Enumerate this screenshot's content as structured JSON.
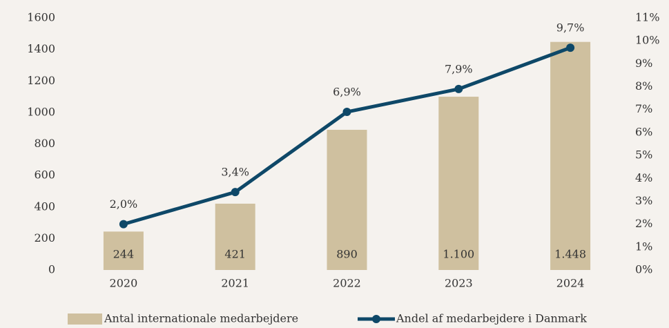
{
  "chart_data": {
    "type": "bar",
    "categories": [
      "2020",
      "2021",
      "2022",
      "2023",
      "2024"
    ],
    "series": [
      {
        "name": "Antal internationale medarbejdere",
        "type": "bar",
        "color": "#cfc09f",
        "values": [
          244,
          421,
          890,
          1100,
          1448
        ],
        "value_labels": [
          "244",
          "421",
          "890",
          "1.100",
          "1.448"
        ]
      },
      {
        "name": "Andel af medarbejdere i Danmark",
        "type": "line",
        "axis": "y2",
        "color": "#0e4868",
        "values": [
          2.0,
          3.4,
          6.9,
          7.9,
          9.7
        ],
        "value_labels": [
          "2,0%",
          "3,4%",
          "6,9%",
          "7,9%",
          "9,7%"
        ]
      }
    ],
    "ylim": [
      0,
      1600
    ],
    "yticks": [
      0,
      200,
      400,
      600,
      800,
      1000,
      1200,
      1400,
      1600
    ],
    "y2lim": [
      0,
      11
    ],
    "y2ticks": [
      {
        "value": 0,
        "label": "0%"
      },
      {
        "value": 1,
        "label": "1%"
      },
      {
        "value": 2,
        "label": "2%"
      },
      {
        "value": 3,
        "label": "3%"
      },
      {
        "value": 4,
        "label": "4%"
      },
      {
        "value": 5,
        "label": "5%"
      },
      {
        "value": 6,
        "label": "6%"
      },
      {
        "value": 7,
        "label": "7%"
      },
      {
        "value": 8,
        "label": "8%"
      },
      {
        "value": 9,
        "label": "9%"
      },
      {
        "value": 10,
        "label": "10%"
      },
      {
        "value": 11,
        "label": "11%"
      }
    ],
    "grid": false,
    "legend": "bottom"
  }
}
